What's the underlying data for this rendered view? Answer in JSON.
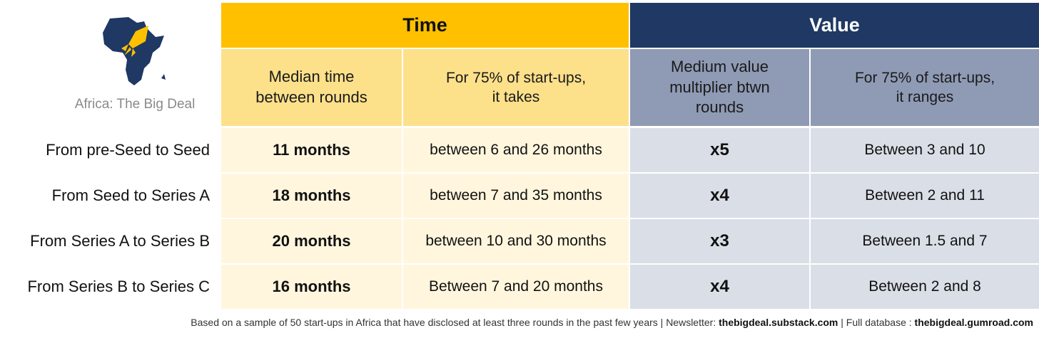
{
  "brand": {
    "name": "Africa: The Big Deal",
    "colors": {
      "map": "#1f3864",
      "rocket": "#ffc000"
    }
  },
  "headers": {
    "time": "Time",
    "value": "Value",
    "time_median": "Median time\nbetween rounds",
    "time_range": "For 75% of start-ups,\nit takes",
    "value_median": "Medium value\nmultiplier btwn\nrounds",
    "value_range": "For 75% of start-ups,\nit ranges"
  },
  "rows": [
    {
      "label": "From pre-Seed to Seed",
      "median_time": "11 months",
      "time_range": "between 6 and 26 months",
      "multiplier": "x5",
      "value_range": "Between 3 and 10"
    },
    {
      "label": "From Seed to Series A",
      "median_time": "18 months",
      "time_range": "between 7 and 35 months",
      "multiplier": "x4",
      "value_range": "Between 2 and 11"
    },
    {
      "label": "From Series A to Series B",
      "median_time": "20 months",
      "time_range": "between 10 and 30 months",
      "multiplier": "x3",
      "value_range": "Between 1.5 and 7"
    },
    {
      "label": "From Series B to Series C",
      "median_time": "16 months",
      "time_range": "Between 7 and 20 months",
      "multiplier": "x4",
      "value_range": "Between 2 and 8"
    }
  ],
  "footnote": {
    "text": "Based on a sample of 50 start-ups in Africa that have disclosed at least three rounds in the past few years | Newsletter: ",
    "newsletter": "thebigdeal.substack.com",
    "sep": " | Full database : ",
    "database": "thebigdeal.gumroad.com"
  },
  "colors": {
    "time_header": "#ffc000",
    "value_header": "#1f3864",
    "time_sub": "#fde08a",
    "value_sub": "#8f9bb5",
    "time_cell": "#fff6dd",
    "value_cell": "#dadfe7"
  }
}
